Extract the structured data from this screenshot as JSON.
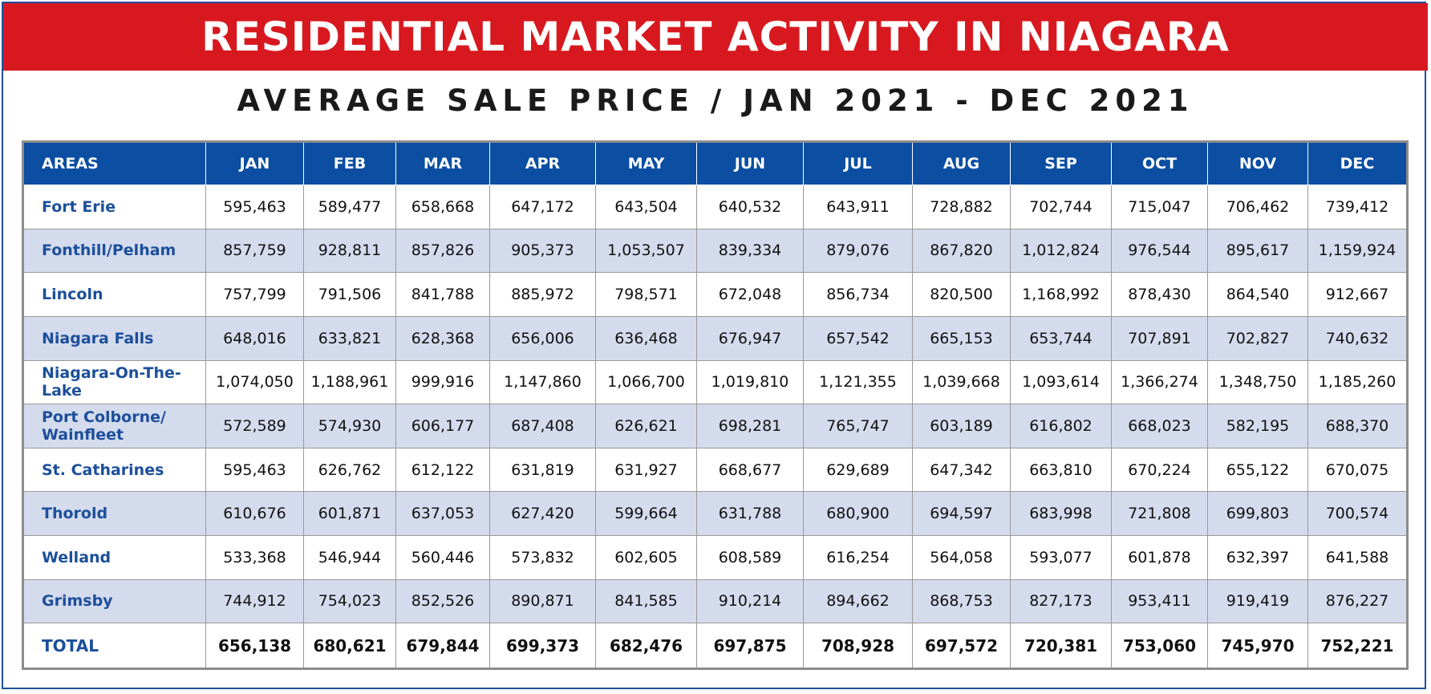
{
  "title": "RESIDENTIAL MARKET ACTIVITY IN NIAGARA",
  "subtitle": "AVERAGE SALE PRICE / JAN 2021 - DEC 2021",
  "colors": {
    "banner": "#d7191f",
    "header": "#0b4ea2",
    "row_alt": "#d4dbed",
    "area_text": "#1c4f9a"
  },
  "headers": [
    "AREAS",
    "JAN",
    "FEB",
    "MAR",
    "APR",
    "MAY",
    "JUN",
    "JUL",
    "AUG",
    "SEP",
    "OCT",
    "NOV",
    "DEC"
  ],
  "rows": [
    {
      "area": "Fort Erie",
      "values": [
        "595,463",
        "589,477",
        "658,668",
        "647,172",
        "643,504",
        "640,532",
        "643,911",
        "728,882",
        "702,744",
        "715,047",
        "706,462",
        "739,412"
      ]
    },
    {
      "area": "Fonthill/Pelham",
      "values": [
        "857,759",
        "928,811",
        "857,826",
        "905,373",
        "1,053,507",
        "839,334",
        "879,076",
        "867,820",
        "1,012,824",
        "976,544",
        "895,617",
        "1,159,924"
      ]
    },
    {
      "area": "Lincoln",
      "values": [
        "757,799",
        "791,506",
        "841,788",
        "885,972",
        "798,571",
        "672,048",
        "856,734",
        "820,500",
        "1,168,992",
        "878,430",
        "864,540",
        "912,667"
      ]
    },
    {
      "area": "Niagara Falls",
      "values": [
        "648,016",
        "633,821",
        "628,368",
        "656,006",
        "636,468",
        "676,947",
        "657,542",
        "665,153",
        "653,744",
        "707,891",
        "702,827",
        "740,632"
      ]
    },
    {
      "area": "Niagara-On-The-Lake",
      "values": [
        "1,074,050",
        "1,188,961",
        "999,916",
        "1,147,860",
        "1,066,700",
        "1,019,810",
        "1,121,355",
        "1,039,668",
        "1,093,614",
        "1,366,274",
        "1,348,750",
        "1,185,260"
      ]
    },
    {
      "area": "Port Colborne/ Wainfleet",
      "values": [
        "572,589",
        "574,930",
        "606,177",
        "687,408",
        "626,621",
        "698,281",
        "765,747",
        "603,189",
        "616,802",
        "668,023",
        "582,195",
        "688,370"
      ]
    },
    {
      "area": "St. Catharines",
      "values": [
        "595,463",
        "626,762",
        "612,122",
        "631,819",
        "631,927",
        "668,677",
        "629,689",
        "647,342",
        "663,810",
        "670,224",
        "655,122",
        "670,075"
      ]
    },
    {
      "area": "Thorold",
      "values": [
        "610,676",
        "601,871",
        "637,053",
        "627,420",
        "599,664",
        "631,788",
        "680,900",
        "694,597",
        "683,998",
        "721,808",
        "699,803",
        "700,574"
      ]
    },
    {
      "area": "Welland",
      "values": [
        "533,368",
        "546,944",
        "560,446",
        "573,832",
        "602,605",
        "608,589",
        "616,254",
        "564,058",
        "593,077",
        "601,878",
        "632,397",
        "641,588"
      ]
    },
    {
      "area": "Grimsby",
      "values": [
        "744,912",
        "754,023",
        "852,526",
        "890,871",
        "841,585",
        "910,214",
        "894,662",
        "868,753",
        "827,173",
        "953,411",
        "919,419",
        "876,227"
      ]
    },
    {
      "area": "TOTAL",
      "values": [
        "656,138",
        "680,621",
        "679,844",
        "699,373",
        "682,476",
        "697,875",
        "708,928",
        "697,572",
        "720,381",
        "753,060",
        "745,970",
        "752,221"
      ]
    }
  ]
}
